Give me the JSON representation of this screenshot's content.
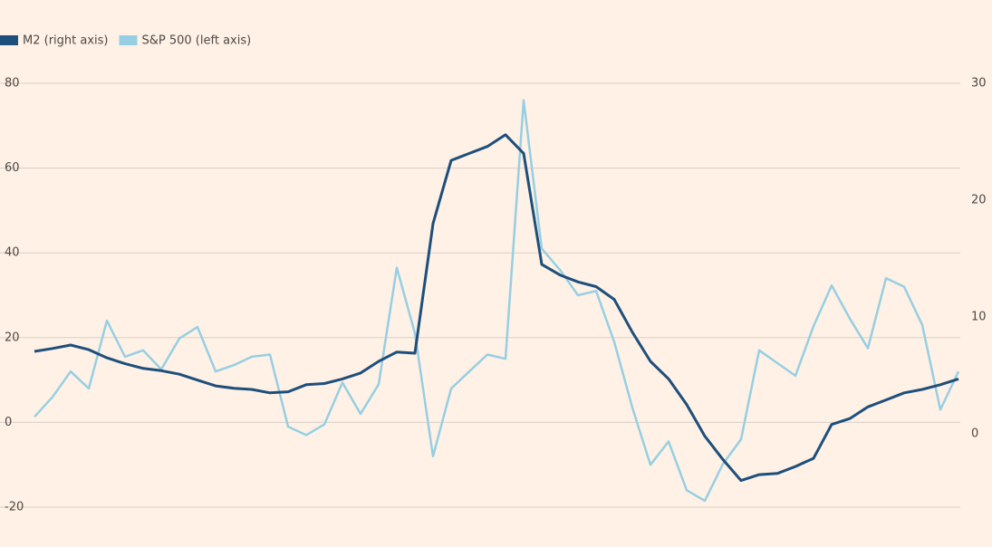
{
  "chart_data": {
    "type": "line",
    "series": [
      {
        "name": "M2 (right axis)",
        "color": "#1d4f7c",
        "axis": "y2",
        "values": [
          7.05,
          7.3,
          7.6,
          7.2,
          6.5,
          6.0,
          5.6,
          5.4,
          5.1,
          4.6,
          4.1,
          3.9,
          3.8,
          3.5,
          3.6,
          4.2,
          4.3,
          4.7,
          5.2,
          6.2,
          7.0,
          6.9,
          18,
          23.4,
          24,
          24.6,
          25.6,
          24,
          14.5,
          13.6,
          13.0,
          12.6,
          11.5,
          8.7,
          6.2,
          4.7,
          2.5,
          -0.2,
          -2.2,
          -4.0,
          -3.5,
          -3.4,
          -2.8,
          -2.1,
          0.8,
          1.3,
          2.3,
          2.9,
          3.5,
          3.8,
          4.2,
          4.7
        ]
      },
      {
        "name": "S&P 500 (left axis)",
        "color": "#96cfe3",
        "values": [
          1.3,
          6,
          12,
          8,
          24,
          15.5,
          17,
          12.5,
          19.8,
          22.5,
          12,
          13.5,
          15.5,
          16,
          -1,
          -3,
          -0.5,
          9.4,
          2,
          9,
          36.5,
          21,
          -8,
          8,
          12,
          16,
          15,
          76,
          41,
          36,
          30,
          31,
          19,
          3.5,
          -10,
          -4.5,
          -16,
          -18.5,
          -9.8,
          -4,
          17,
          14,
          11,
          22.7,
          32.3,
          24.5,
          17.5,
          34,
          32,
          23,
          3,
          12
        ]
      }
    ],
    "ylim": [
      -20,
      80
    ],
    "yticks": [
      -20,
      0,
      20,
      40,
      60,
      80
    ],
    "y2lim": [
      -6.28,
      30
    ],
    "y2ticks": [
      0,
      10,
      20,
      30
    ],
    "grid": true
  }
}
